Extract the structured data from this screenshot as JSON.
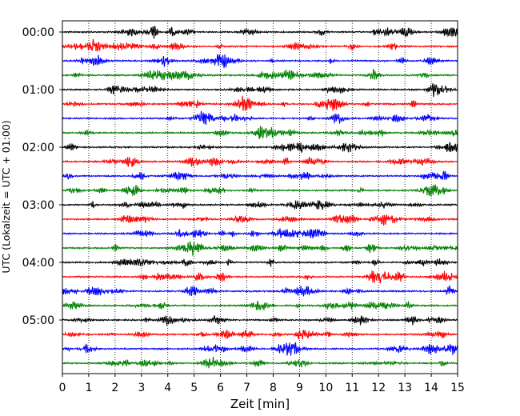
{
  "chart_data": {
    "type": "line",
    "title": "",
    "xlabel": "Zeit  [min]",
    "ylabel": "UTC (Lokalzeit = UTC + 01:00)",
    "xlim": [
      0,
      15
    ],
    "x_ticks": [
      0,
      1,
      2,
      3,
      4,
      5,
      6,
      7,
      8,
      9,
      10,
      11,
      12,
      13,
      14,
      15
    ],
    "y_ticks": [
      "00:00",
      "01:00",
      "02:00",
      "03:00",
      "04:00",
      "05:00"
    ],
    "grid": "vertical dotted at each minute",
    "trace_count": 24,
    "trace_interval_minutes": 15,
    "trace_colors": [
      "#000000",
      "#ff0000",
      "#0000ff",
      "#008000"
    ],
    "trace_start_times": [
      "00:00",
      "00:15",
      "00:30",
      "00:45",
      "01:00",
      "01:15",
      "01:30",
      "01:45",
      "02:00",
      "02:15",
      "02:30",
      "02:45",
      "03:00",
      "03:15",
      "03:30",
      "03:45",
      "04:00",
      "04:15",
      "04:30",
      "04:45",
      "05:00",
      "05:15",
      "05:30",
      "05:45"
    ]
  }
}
